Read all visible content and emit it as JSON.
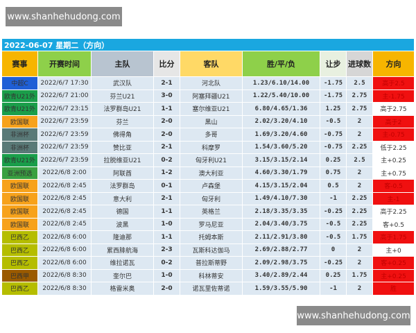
{
  "watermark": "www.shanhehudong.com",
  "title": "2022-06-07 星期二（方向）",
  "headers": [
    "赛事",
    "开赛时间",
    "主队",
    "比分",
    "客队",
    "胜/平/负",
    "让步",
    "进球数",
    "方向"
  ],
  "header_colors": [
    "#f7b500",
    "#8ed04a",
    "#b8c4d0",
    "#e6e6e6",
    "#ffd966",
    "#8ed04a",
    "#e8f0e0",
    "#d6d6d6",
    "#f7b500"
  ],
  "league_colors": {
    "中超C": "#1f5fd6",
    "欧青U21外": "#1a9e4a",
    "欧国联": "#f7a21b",
    "非洲杯": "#5a7a78",
    "亚洲预选": "#3aa040",
    "巴西乙": "#b5bd00",
    "巴西甲": "#9a5a00"
  },
  "rows": [
    [
      "中超C",
      "2022/6/7 17:30",
      "武汉队",
      "2-1",
      "河北队",
      "1.23/6.10/14.00",
      "-1.75",
      "2.5",
      "高于2.5",
      true
    ],
    [
      "欧青U21外",
      "2022/6/7 21:00",
      "芬兰U21",
      "3-0",
      "阿塞拜疆U21",
      "1.22/5.40/10.00",
      "-1.75",
      "2.75",
      "主-1.75",
      true
    ],
    [
      "欧青U21外",
      "2022/6/7 23:15",
      "法罗群岛U21",
      "1-1",
      "塞尔维亚U21",
      "6.80/4.65/1.36",
      "1.25",
      "2.75",
      "高于2.75",
      false
    ],
    [
      "欧国联",
      "2022/6/7 23:59",
      "芬兰",
      "2-0",
      "黑山",
      "2.02/3.20/4.10",
      "-0.5",
      "2",
      "高于2",
      true
    ],
    [
      "非洲杯",
      "2022/6/7 23:59",
      "佛得角",
      "2-0",
      "多哥",
      "1.69/3.20/4.60",
      "-0.75",
      "2",
      "主-0.75",
      true
    ],
    [
      "非洲杯",
      "2022/6/7 23:59",
      "赞比亚",
      "2-1",
      "科摩罗",
      "1.54/3.60/5.20",
      "-0.75",
      "2.25",
      "低于2.25",
      false
    ],
    [
      "欧青U21外",
      "2022/6/7 23:59",
      "拉脱维亚U21",
      "0-2",
      "匈牙利U21",
      "3.15/3.15/2.14",
      "0.25",
      "2.5",
      "主+0.25",
      false
    ],
    [
      "亚洲预选",
      "2022/6/8 2:00",
      "阿联酋",
      "1-2",
      "澳大利亚",
      "4.60/3.30/1.79",
      "0.75",
      "2",
      "主+0.75",
      false
    ],
    [
      "欧国联",
      "2022/6/8 2:45",
      "法罗群岛",
      "0-1",
      "卢森堡",
      "4.15/3.15/2.04",
      "0.5",
      "2",
      "客-0.5",
      true
    ],
    [
      "欧国联",
      "2022/6/8 2:45",
      "意大利",
      "2-1",
      "匈牙利",
      "1.49/4.10/7.30",
      "-1",
      "2.25",
      "主-1",
      true
    ],
    [
      "欧国联",
      "2022/6/8 2:45",
      "德国",
      "1-1",
      "英格兰",
      "2.18/3.35/3.35",
      "-0.25",
      "2.25",
      "高于2.25",
      false
    ],
    [
      "欧国联",
      "2022/6/8 2:45",
      "波黑",
      "1-0",
      "罗马尼亚",
      "2.04/3.40/3.75",
      "-0.5",
      "2.25",
      "客+0.5",
      false
    ],
    [
      "巴西乙",
      "2022/6/8 6:00",
      "隆迪那",
      "1-1",
      "托姆本斯",
      "2.11/2.91/3.80",
      "-0.5",
      "1.75",
      "高于1.75",
      true
    ],
    [
      "巴西乙",
      "2022/6/8 6:00",
      "累西腓航海",
      "2-3",
      "瓦斯科达伽马",
      "2.69/2.88/2.77",
      "0",
      "2",
      "主+0",
      false
    ],
    [
      "巴西乙",
      "2022/6/8 6:00",
      "维拉诺瓦",
      "0-2",
      "普拉斯蒂野",
      "2.09/2.98/3.75",
      "-0.25",
      "2",
      "客+0.25",
      true
    ],
    [
      "巴西甲",
      "2022/6/8 8:30",
      "奎尔巴",
      "1-0",
      "科林蒂安",
      "3.40/2.89/2.44",
      "0.25",
      "1.75",
      "主+0.25",
      true
    ],
    [
      "巴西乙",
      "2022/6/8 8:30",
      "格雷米奥",
      "2-0",
      "诺瓦里佐蒂诺",
      "1.59/3.55/5.90",
      "-1",
      "2",
      "胜",
      true
    ]
  ]
}
